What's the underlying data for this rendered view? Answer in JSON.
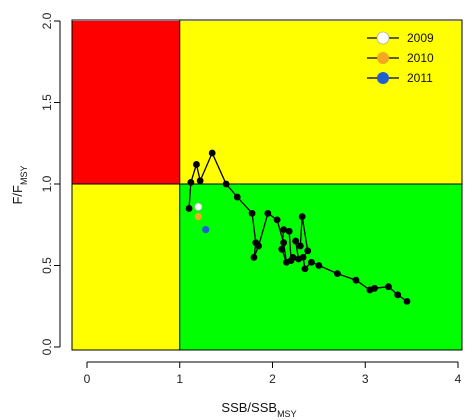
{
  "chart_data": {
    "type": "scatter",
    "title": "",
    "xlabel": {
      "main": "SSB/SSB",
      "sub": "MSY"
    },
    "ylabel": {
      "main": "F/F",
      "sub": "MSY"
    },
    "xlim": [
      0,
      4
    ],
    "ylim": [
      0,
      2
    ],
    "x_ticks": [
      "0",
      "1",
      "2",
      "3",
      "4"
    ],
    "y_ticks": [
      "0.0",
      "0.5",
      "1.0",
      "1.5",
      "2.0"
    ],
    "regions": [
      {
        "name": "overfished-overfishing",
        "color": "#ff0000",
        "x": [
          0,
          1
        ],
        "y": [
          1,
          2
        ]
      },
      {
        "name": "healthy-overfishing",
        "color": "#ffff00",
        "x": [
          1,
          4.2
        ],
        "y": [
          1,
          2
        ]
      },
      {
        "name": "overfished-no-overfishing",
        "color": "#ffff00",
        "x": [
          0,
          1
        ],
        "y": [
          0,
          1
        ]
      },
      {
        "name": "healthy",
        "color": "#00ff00",
        "x": [
          1,
          4.2
        ],
        "y": [
          0,
          1
        ]
      }
    ],
    "series": [
      {
        "color": "#000000",
        "points": [
          [
            3.45,
            0.28
          ],
          [
            3.35,
            0.32
          ],
          [
            3.25,
            0.37
          ],
          [
            3.1,
            0.36
          ],
          [
            3.05,
            0.35
          ],
          [
            2.9,
            0.41
          ],
          [
            2.7,
            0.45
          ],
          [
            2.5,
            0.5
          ],
          [
            2.42,
            0.52
          ],
          [
            2.35,
            0.48
          ],
          [
            2.33,
            0.55
          ],
          [
            2.38,
            0.59
          ],
          [
            2.32,
            0.8
          ],
          [
            2.3,
            0.62
          ],
          [
            2.25,
            0.65
          ],
          [
            2.28,
            0.54
          ],
          [
            2.22,
            0.55
          ],
          [
            2.2,
            0.53
          ],
          [
            2.18,
            0.71
          ],
          [
            2.12,
            0.72
          ],
          [
            2.1,
            0.6
          ],
          [
            2.15,
            0.52
          ],
          [
            2.12,
            0.64
          ],
          [
            2.05,
            0.78
          ],
          [
            1.95,
            0.82
          ],
          [
            1.85,
            0.62
          ],
          [
            1.8,
            0.55
          ],
          [
            1.82,
            0.64
          ],
          [
            1.78,
            0.82
          ],
          [
            1.62,
            0.92
          ],
          [
            1.5,
            1.0
          ],
          [
            1.35,
            1.19
          ],
          [
            1.22,
            1.02
          ],
          [
            1.18,
            1.12
          ],
          [
            1.12,
            1.01
          ],
          [
            1.1,
            0.85
          ]
        ]
      }
    ],
    "highlights": [
      {
        "year": "2009",
        "x": 1.2,
        "y": 0.86,
        "color": "#ffffff"
      },
      {
        "year": "2010",
        "x": 1.2,
        "y": 0.8,
        "color": "#f5a623"
      },
      {
        "year": "2011",
        "x": 1.28,
        "y": 0.72,
        "color": "#1f5fd0"
      }
    ],
    "legend": {
      "position": "top-right"
    }
  }
}
